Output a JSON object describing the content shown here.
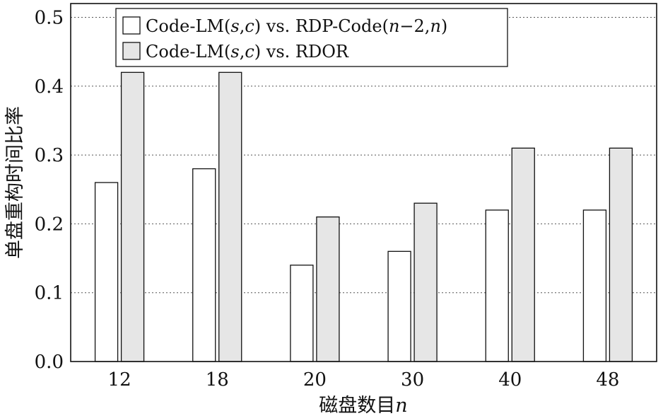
{
  "chart_data": {
    "type": "bar",
    "categories": [
      "12",
      "18",
      "20",
      "30",
      "40",
      "48"
    ],
    "series": [
      {
        "name": "Code-LM(s,c) vs. RDP-Code(n−2,n)",
        "values": [
          0.26,
          0.28,
          0.14,
          0.16,
          0.22,
          0.22
        ],
        "color": "#ffffff"
      },
      {
        "name": "Code-LM(s,c) vs. RDOR",
        "values": [
          0.42,
          0.42,
          0.21,
          0.23,
          0.31,
          0.31
        ],
        "color": "#e6e6e6"
      }
    ],
    "title": "",
    "xlabel": "磁盘数目n",
    "ylabel": "单盘重构时间比率",
    "ylim": [
      0,
      0.52
    ],
    "yticks": [
      "0.0",
      "0.1",
      "0.2",
      "0.3",
      "0.4",
      "0.5"
    ],
    "grid": true,
    "legend_position": "top-left"
  }
}
